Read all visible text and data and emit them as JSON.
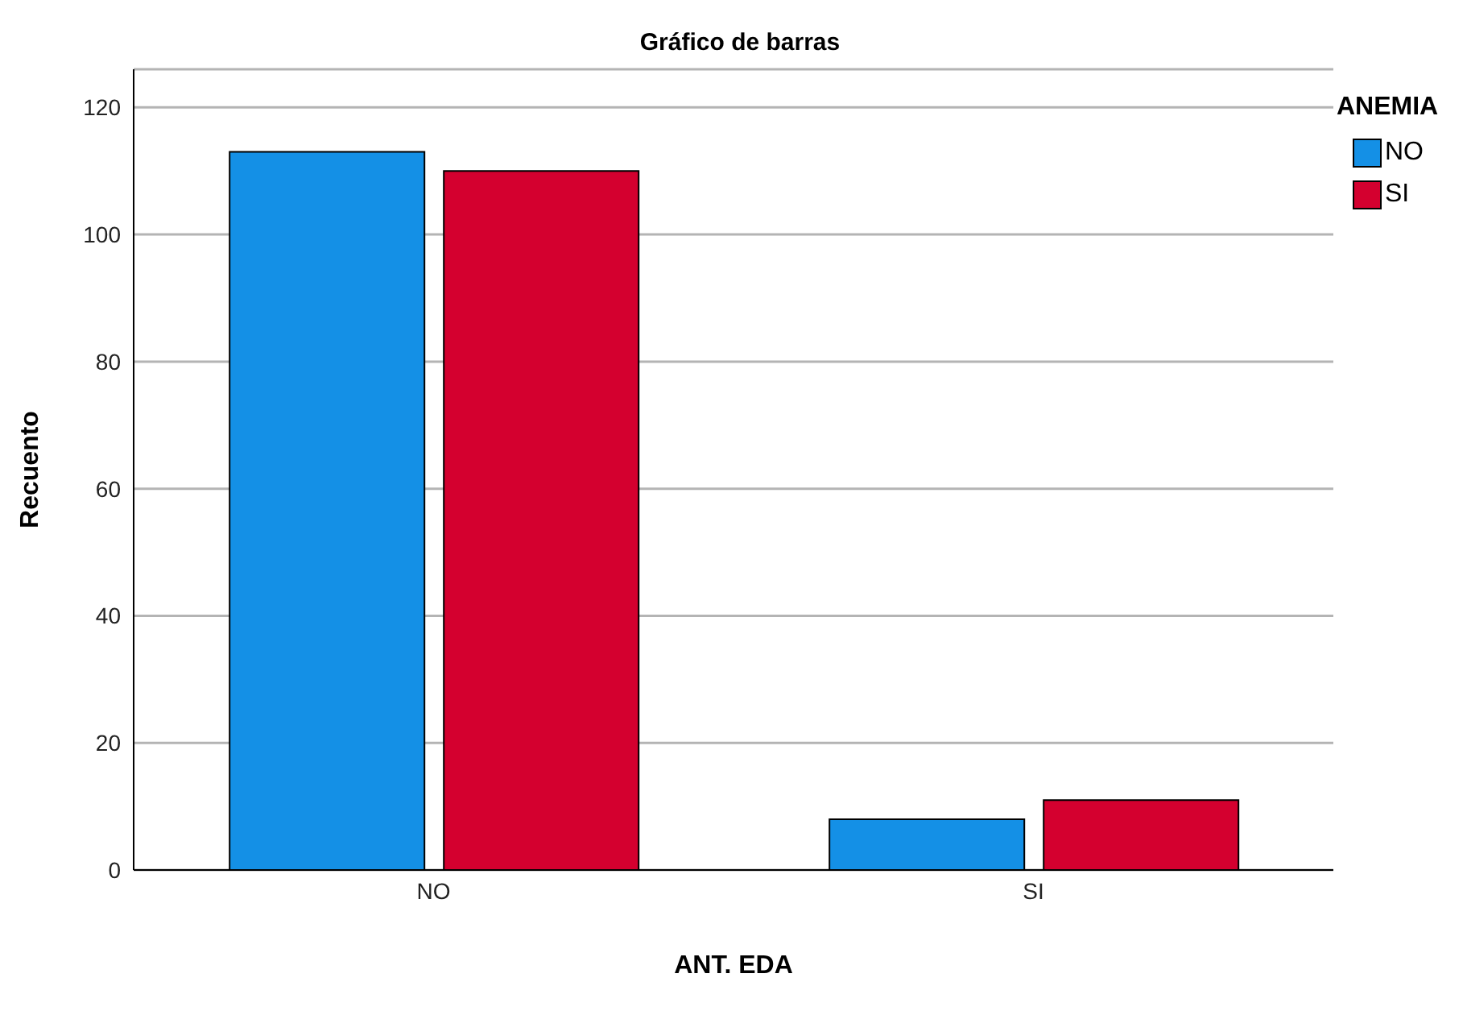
{
  "chart_data": {
    "type": "bar",
    "title": "Gráfico de barras",
    "xlabel": "ANT. EDA",
    "ylabel": "Recuento",
    "legend_title": "ANEMIA",
    "categories": [
      "NO",
      "SI"
    ],
    "series": [
      {
        "name": "NO",
        "color": "#1490e6",
        "values": [
          113,
          8
        ]
      },
      {
        "name": "SI",
        "color": "#d4002f",
        "values": [
          110,
          11
        ]
      }
    ],
    "ylim": [
      0,
      126
    ],
    "yticks": [
      0,
      20,
      40,
      60,
      80,
      100,
      120
    ],
    "grid": "y",
    "legend": "top right"
  }
}
